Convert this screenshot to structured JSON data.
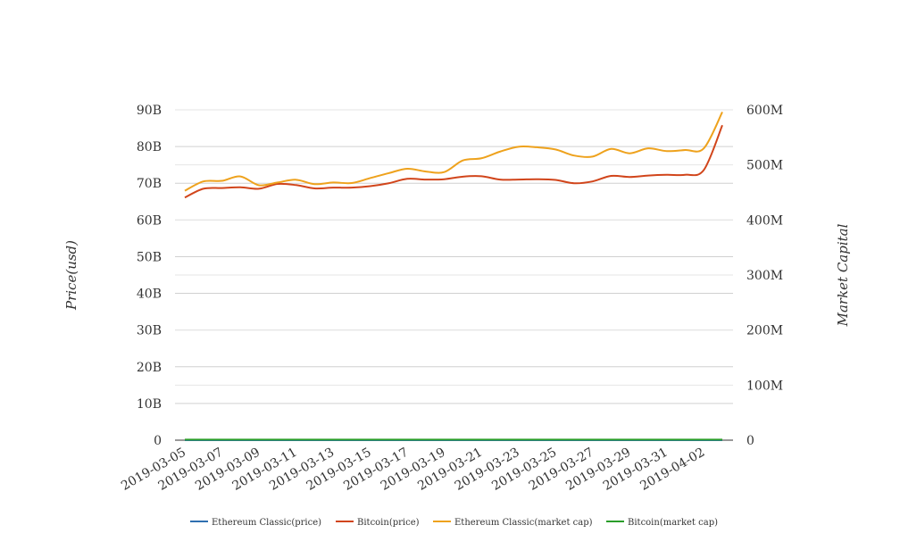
{
  "chart_data": {
    "type": "line",
    "x": [
      "2019-03-05",
      "2019-03-06",
      "2019-03-07",
      "2019-03-08",
      "2019-03-09",
      "2019-03-10",
      "2019-03-11",
      "2019-03-12",
      "2019-03-13",
      "2019-03-14",
      "2019-03-15",
      "2019-03-16",
      "2019-03-17",
      "2019-03-18",
      "2019-03-19",
      "2019-03-20",
      "2019-03-21",
      "2019-03-22",
      "2019-03-23",
      "2019-03-24",
      "2019-03-25",
      "2019-03-26",
      "2019-03-27",
      "2019-03-28",
      "2019-03-29",
      "2019-03-30",
      "2019-03-31",
      "2019-04-01",
      "2019-04-02",
      "2019-04-03"
    ],
    "x_tick_labels": [
      "2019-03-05",
      "2019-03-07",
      "2019-03-09",
      "2019-03-11",
      "2019-03-13",
      "2019-03-15",
      "2019-03-17",
      "2019-03-19",
      "2019-03-21",
      "2019-03-23",
      "2019-03-25",
      "2019-03-27",
      "2019-03-29",
      "2019-03-31",
      "2019-04-02"
    ],
    "y_left": {
      "label": "Price(usd)",
      "ylim": [
        0,
        90000000000
      ],
      "ticks": [
        0,
        10000000000,
        20000000000,
        30000000000,
        40000000000,
        50000000000,
        60000000000,
        70000000000,
        80000000000,
        90000000000
      ],
      "tick_labels": [
        "0",
        "10B",
        "20B",
        "30B",
        "40B",
        "50B",
        "60B",
        "70B",
        "80B",
        "90B"
      ]
    },
    "y_right": {
      "label": "Market Capital",
      "ylim": [
        0,
        600000000
      ],
      "ticks": [
        0,
        100000000,
        200000000,
        300000000,
        400000000,
        500000000,
        600000000
      ],
      "tick_labels": [
        "0",
        "100M",
        "200M",
        "300M",
        "400M",
        "500M",
        "600M"
      ]
    },
    "grid": true,
    "legend_position": "bottom",
    "series": [
      {
        "name": "Ethereum Classic(price)",
        "axis": "left",
        "color": "#2f6fb0",
        "values": [
          4.5,
          4.6,
          4.6,
          4.7,
          4.5,
          4.6,
          4.6,
          4.5,
          4.5,
          4.5,
          4.6,
          4.6,
          4.7,
          4.7,
          4.7,
          4.8,
          4.9,
          5.0,
          5.0,
          5.1,
          5.0,
          5.0,
          5.1,
          5.1,
          5.1,
          5.1,
          5.1,
          5.1,
          5.3,
          5.8
        ]
      },
      {
        "name": "Bitcoin(price)",
        "axis": "left",
        "color": "#d1451b",
        "values": [
          66100000000,
          68500000000,
          68700000000,
          68900000000,
          68500000000,
          69800000000,
          69500000000,
          68600000000,
          68800000000,
          68800000000,
          69200000000,
          70000000000,
          71200000000,
          71000000000,
          71100000000,
          71800000000,
          71900000000,
          71000000000,
          71000000000,
          71100000000,
          70900000000,
          70000000000,
          70500000000,
          72000000000,
          71700000000,
          72100000000,
          72300000000,
          72300000000,
          73600000000,
          85800000000
        ]
      },
      {
        "name": "Ethereum Classic(market cap)",
        "axis": "right",
        "color": "#eea21d",
        "values": [
          453000000,
          470000000,
          471000000,
          479000000,
          463000000,
          468000000,
          473000000,
          465000000,
          468000000,
          467000000,
          476000000,
          485000000,
          493000000,
          488000000,
          487000000,
          508000000,
          512000000,
          524000000,
          533000000,
          532000000,
          528000000,
          517000000,
          515000000,
          529000000,
          521000000,
          530000000,
          525000000,
          527000000,
          530000000,
          596000000
        ]
      },
      {
        "name": "Bitcoin(market cap)",
        "axis": "right",
        "color": "#2a9d2a",
        "values": [
          1100000,
          1100000,
          1100000,
          1100000,
          1100000,
          1100000,
          1100000,
          1100000,
          1100000,
          1100000,
          1100000,
          1100000,
          1100000,
          1100000,
          1100000,
          1100000,
          1100000,
          1100000,
          1100000,
          1100000,
          1100000,
          1100000,
          1100000,
          1100000,
          1100000,
          1100000,
          1100000,
          1100000,
          1100000,
          1100000
        ]
      }
    ]
  }
}
